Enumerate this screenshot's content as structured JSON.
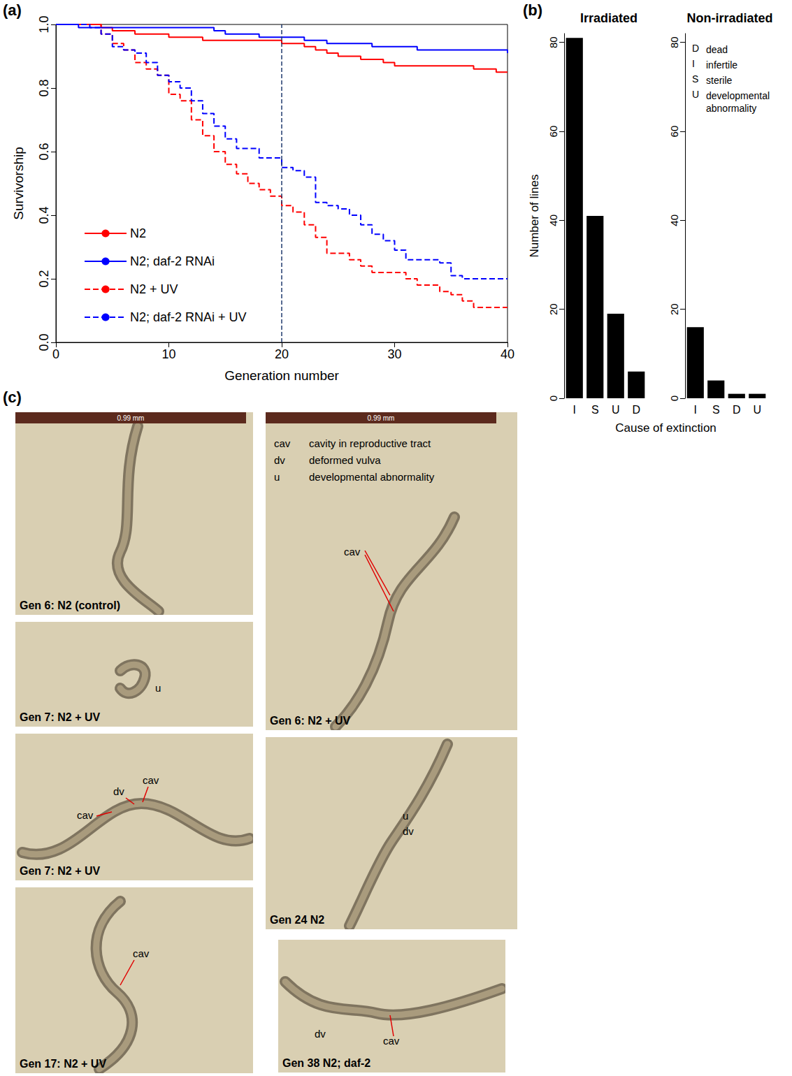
{
  "panel_labels": [
    "(a)",
    "(b)",
    "(c)"
  ],
  "chart_data": [
    {
      "type": "line",
      "xlabel": "Generation number",
      "ylabel": "Survivorship",
      "x": [
        0,
        1,
        2,
        3,
        4,
        5,
        6,
        7,
        8,
        9,
        10,
        11,
        12,
        13,
        14,
        15,
        16,
        17,
        18,
        19,
        20,
        21,
        22,
        23,
        24,
        25,
        26,
        27,
        28,
        29,
        30,
        31,
        32,
        33,
        34,
        35,
        36,
        37,
        38,
        39,
        40
      ],
      "series": [
        {
          "name": "N2",
          "color": "#ff0000",
          "line_style": "solid",
          "values": [
            1,
            1,
            1,
            1,
            0.99,
            0.98,
            0.98,
            0.97,
            0.97,
            0.97,
            0.96,
            0.96,
            0.96,
            0.95,
            0.95,
            0.95,
            0.95,
            0.95,
            0.95,
            0.95,
            0.94,
            0.94,
            0.93,
            0.92,
            0.91,
            0.9,
            0.9,
            0.89,
            0.89,
            0.88,
            0.87,
            0.87,
            0.87,
            0.87,
            0.87,
            0.87,
            0.87,
            0.86,
            0.86,
            0.85,
            0.85
          ]
        },
        {
          "name": "N2; daf-2 RNAi",
          "color": "#0000ff",
          "line_style": "solid",
          "values": [
            1,
            1,
            0.99,
            0.99,
            0.99,
            0.99,
            0.99,
            0.99,
            0.99,
            0.99,
            0.99,
            0.99,
            0.99,
            0.99,
            0.98,
            0.97,
            0.97,
            0.97,
            0.96,
            0.96,
            0.96,
            0.96,
            0.95,
            0.95,
            0.94,
            0.94,
            0.94,
            0.94,
            0.93,
            0.93,
            0.93,
            0.93,
            0.92,
            0.92,
            0.92,
            0.92,
            0.92,
            0.92,
            0.92,
            0.92,
            0.91
          ]
        },
        {
          "name": "N2 + UV",
          "color": "#ff0000",
          "line_style": "dashed",
          "values": [
            1,
            1,
            1,
            1,
            0.97,
            0.94,
            0.92,
            0.88,
            0.86,
            0.84,
            0.78,
            0.76,
            0.7,
            0.65,
            0.6,
            0.56,
            0.53,
            0.5,
            0.48,
            0.46,
            0.43,
            0.41,
            0.37,
            0.33,
            0.28,
            0.28,
            0.26,
            0.24,
            0.22,
            0.22,
            0.22,
            0.2,
            0.18,
            0.18,
            0.16,
            0.15,
            0.13,
            0.11,
            0.11,
            0.11,
            0.11
          ]
        },
        {
          "name": "N2; daf-2 RNAi + UV",
          "color": "#0000ff",
          "line_style": "dashed",
          "values": [
            1,
            1,
            1,
            0.99,
            0.97,
            0.93,
            0.92,
            0.91,
            0.88,
            0.84,
            0.82,
            0.8,
            0.76,
            0.72,
            0.68,
            0.64,
            0.61,
            0.61,
            0.58,
            0.58,
            0.55,
            0.54,
            0.52,
            0.44,
            0.43,
            0.42,
            0.4,
            0.37,
            0.34,
            0.32,
            0.29,
            0.26,
            0.26,
            0.26,
            0.25,
            0.21,
            0.2,
            0.2,
            0.2,
            0.2,
            0.2
          ]
        }
      ],
      "xlim": [
        0,
        40
      ],
      "xticks": [
        0,
        10,
        20,
        30,
        40
      ],
      "ylim": [
        0,
        1
      ],
      "yticks": [
        {
          "value": 0,
          "label": "0.0"
        },
        {
          "value": 0.2,
          "label": "0.2"
        },
        {
          "value": 0.4,
          "label": "0.4"
        },
        {
          "value": 0.6,
          "label": "0.6"
        },
        {
          "value": 0.8,
          "label": "0.8"
        },
        {
          "value": 1,
          "label": "1.0"
        }
      ],
      "vline": 20,
      "grid": false,
      "legend": "lower left"
    },
    {
      "type": "bar",
      "title": "Irradiated",
      "ylabel": "Number of lines",
      "categories": [
        "I",
        "S",
        "U",
        "D"
      ],
      "values": [
        81,
        41,
        19,
        6
      ],
      "color": "#000000",
      "ylim": [
        0,
        82
      ],
      "yticks": [
        0,
        20,
        40,
        60,
        80
      ],
      "grid": false
    },
    {
      "type": "bar",
      "title": "Non-irradiated",
      "categories": [
        "I",
        "S",
        "D",
        "U"
      ],
      "values": [
        16,
        4,
        1,
        1
      ],
      "color": "#000000",
      "ylim": [
        0,
        82
      ],
      "yticks": [
        0,
        20,
        40,
        60,
        80
      ],
      "grid": false
    }
  ],
  "panel_b": {
    "xlabel": "Cause of extinction",
    "key": [
      {
        "code": "D",
        "meaning": "dead"
      },
      {
        "code": "I",
        "meaning": "infertile"
      },
      {
        "code": "S",
        "meaning": "sterile"
      },
      {
        "code": "U",
        "meaning": "developmental abnormality"
      }
    ]
  },
  "panel_c": {
    "photos": [
      {
        "caption": "Gen 6: N2 (control)",
        "scale_bar": "0.99 mm",
        "annotations": []
      },
      {
        "caption": "Gen 7: N2 + UV",
        "annotations": [
          "u"
        ]
      },
      {
        "caption": "Gen 7: N2 + UV",
        "annotations": [
          "cav",
          "dv",
          "cav"
        ]
      },
      {
        "caption": "Gen 17: N2 + UV",
        "annotations": [
          "cav"
        ]
      },
      {
        "caption": "Gen 6: N2 + UV",
        "scale_bar": "0.99 mm",
        "key": [
          {
            "code": "cav",
            "meaning": "cavity in reproductive tract"
          },
          {
            "code": "dv",
            "meaning": "deformed vulva"
          },
          {
            "code": "u",
            "meaning": "developmental abnormality"
          }
        ],
        "annotations": [
          "cav"
        ]
      },
      {
        "caption": "Gen 24 N2",
        "annotations": [
          "u",
          "dv"
        ]
      },
      {
        "caption": "Gen 38 N2; daf-2",
        "annotations": [
          "dv",
          "cav"
        ]
      }
    ]
  }
}
